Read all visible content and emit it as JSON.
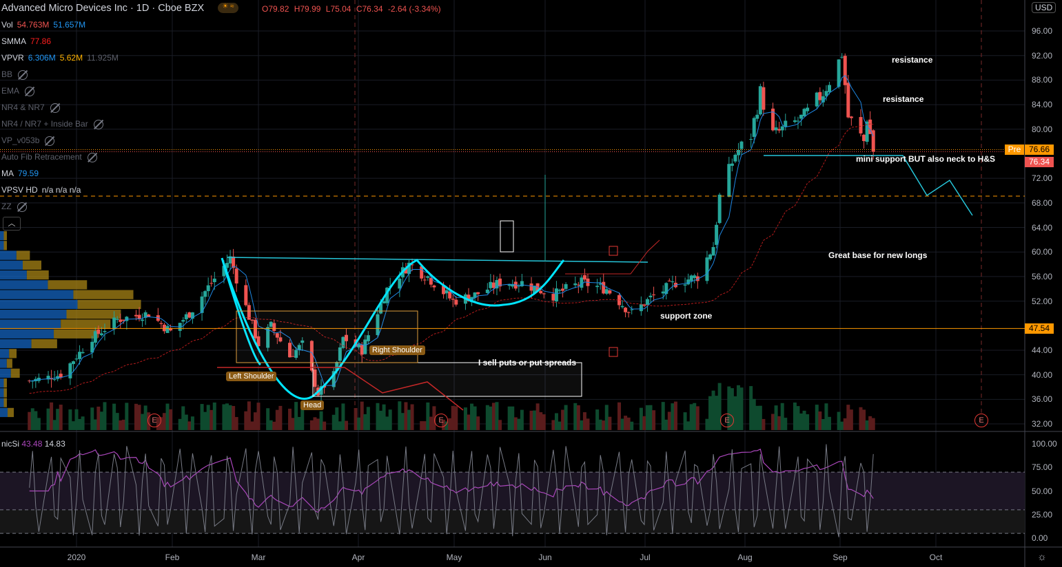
{
  "header": {
    "title": "Advanced Micro Devices Inc · 1D · Cboe BZX",
    "badge": "☀ ≈",
    "open": "O79.82",
    "high": "H79.99",
    "low": "L75.04",
    "close": "C76.34",
    "change": "-2.64 (-3.34%)"
  },
  "indicators": [
    {
      "name": "Vol",
      "v1": "54.763M",
      "v2": "51.657M",
      "c1": "#ef5350",
      "c2": "#2196f3"
    },
    {
      "name": "SMMA",
      "v1": "77.86",
      "c1": "#ff1e1e"
    },
    {
      "name": "VPVR",
      "v1": "6.306M",
      "v2": "5.62M",
      "v3": "11.925M",
      "c1": "#2196f3",
      "c2": "#ffb300",
      "c3": "#5d606b"
    },
    {
      "name": "BB",
      "hidden": true
    },
    {
      "name": "EMA",
      "hidden": true
    },
    {
      "name": "NR4 & NR7",
      "hidden": true
    },
    {
      "name": "NR4 / NR7 + Inside Bar",
      "hidden": true
    },
    {
      "name": "VP_v053b",
      "hidden": true
    },
    {
      "name": "Auto Fib Retracement",
      "hidden": true
    },
    {
      "name": "MA",
      "v1": "79.59",
      "c1": "#2196f3"
    },
    {
      "name": "VPSV HD",
      "v1": "n/a n/a n/a",
      "c1": "#d1d4dc"
    },
    {
      "name": "ZZ",
      "hidden": true
    }
  ],
  "rsi_legend": {
    "name": "nicSi",
    "v1": "43.48",
    "v2": "14.83"
  },
  "currency": "USD",
  "price_tags": {
    "pre_label": "Pre",
    "pre": "76.66",
    "last": "76.34",
    "level": "47.54"
  },
  "annotations": {
    "resistance1": "resistance",
    "resistance2": "resistance",
    "mini_support": "mini support BUT also neck to H&S",
    "great_base": "Great base for new longs",
    "support_zone": "support zone",
    "sell_puts": "I sell puts or put spreads",
    "left_shoulder": "Left Shoulder",
    "head": "Head",
    "right_shoulder": "Right Shoulder"
  },
  "earnings_marker": "E",
  "colors": {
    "up": "#26a69a",
    "down": "#ef5350",
    "accent": "#ff9800",
    "neck": "#00e5ff"
  },
  "chart_data": {
    "type": "candlestick",
    "title": "Advanced Micro Devices Inc · 1D · Cboe BZX",
    "y_ticks": [
      "96.00",
      "92.00",
      "88.00",
      "84.00",
      "80.00",
      "72.00",
      "68.00",
      "64.00",
      "60.00",
      "56.00",
      "52.00",
      "44.00",
      "40.00",
      "36.00",
      "32.00"
    ],
    "ylim": [
      32,
      96
    ],
    "x_ticks": [
      "2020",
      "Feb",
      "Mar",
      "Apr",
      "May",
      "Jun",
      "Jul",
      "Aug",
      "Sep",
      "Oct"
    ],
    "price_path": [
      [
        "2019-12-17",
        39
      ],
      [
        "2019-12-27",
        40
      ],
      [
        "2020-01-06",
        46
      ],
      [
        "2020-01-14",
        49
      ],
      [
        "2020-01-24",
        50
      ],
      [
        "2020-01-31",
        47
      ],
      [
        "2020-02-06",
        50
      ],
      [
        "2020-02-13",
        55
      ],
      [
        "2020-02-19",
        59
      ],
      [
        "2020-02-24",
        51
      ],
      [
        "2020-02-28",
        45
      ],
      [
        "2020-03-03",
        48
      ],
      [
        "2020-03-09",
        43
      ],
      [
        "2020-03-13",
        45
      ],
      [
        "2020-03-18",
        37
      ],
      [
        "2020-03-23",
        40
      ],
      [
        "2020-03-26",
        46
      ],
      [
        "2020-04-01",
        44
      ],
      [
        "2020-04-09",
        54
      ],
      [
        "2020-04-16",
        58
      ],
      [
        "2020-04-22",
        56
      ],
      [
        "2020-04-30",
        52
      ],
      [
        "2020-05-07",
        53
      ],
      [
        "2020-05-15",
        55
      ],
      [
        "2020-05-22",
        55
      ],
      [
        "2020-06-01",
        53
      ],
      [
        "2020-06-10",
        55
      ],
      [
        "2020-06-18",
        54
      ],
      [
        "2020-06-26",
        50
      ],
      [
        "2020-07-02",
        52.5
      ],
      [
        "2020-07-10",
        55
      ],
      [
        "2020-07-17",
        56
      ],
      [
        "2020-07-22",
        61
      ],
      [
        "2020-07-24",
        69
      ],
      [
        "2020-07-29",
        76
      ],
      [
        "2020-08-03",
        79
      ],
      [
        "2020-08-06",
        86
      ],
      [
        "2020-08-10",
        79
      ],
      [
        "2020-08-20",
        82
      ],
      [
        "2020-08-26",
        86
      ],
      [
        "2020-08-31",
        91
      ],
      [
        "2020-09-01",
        92.5
      ],
      [
        "2020-09-03",
        82
      ],
      [
        "2020-09-08",
        78
      ],
      [
        "2020-09-09",
        82
      ],
      [
        "2020-09-11",
        76.34
      ]
    ],
    "rsi_ticks": [
      "100.00",
      "75.00",
      "50.00",
      "25.00",
      "0.00"
    ],
    "levels": {
      "resistance_neck": 58.7,
      "support": 47.54,
      "dashed": 69.1,
      "pre": 76.66
    }
  }
}
